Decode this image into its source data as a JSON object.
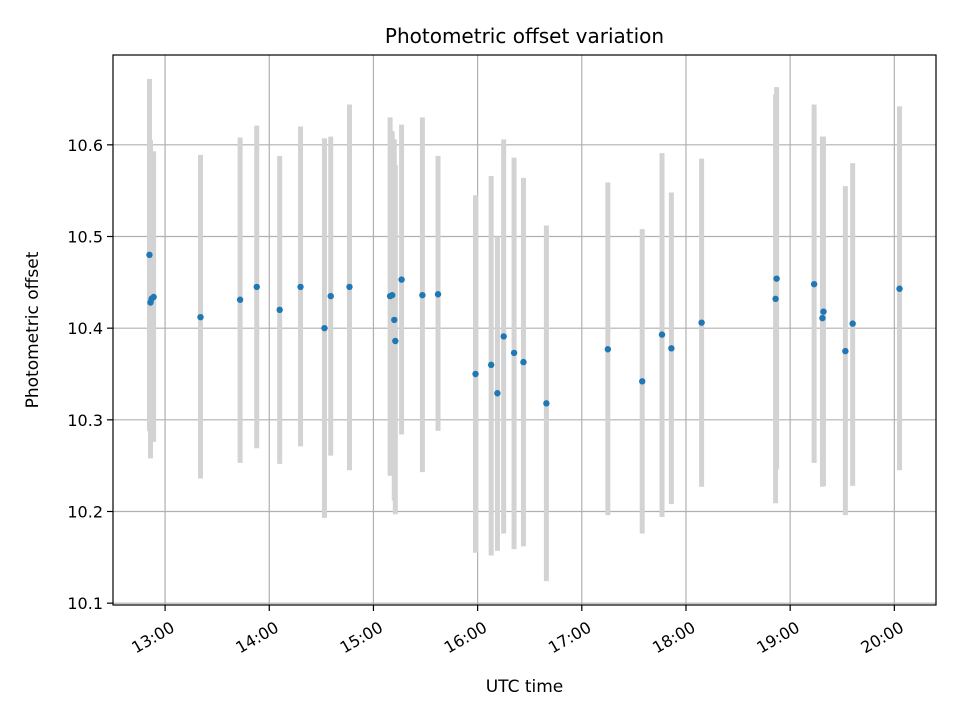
{
  "chart_data": {
    "type": "scatter",
    "title": "Photometric offset variation",
    "xlabel": "UTC time",
    "ylabel": "Photometric offset",
    "x_unit": "hours UTC",
    "xlim": [
      12.5,
      20.4
    ],
    "ylim": [
      10.098,
      10.698
    ],
    "grid": true,
    "x_tick_values": [
      13,
      14,
      15,
      16,
      17,
      18,
      19,
      20
    ],
    "x_tick_labels": [
      "13:00",
      "14:00",
      "15:00",
      "16:00",
      "17:00",
      "18:00",
      "19:00",
      "20:00"
    ],
    "y_tick_values": [
      10.1,
      10.2,
      10.3,
      10.4,
      10.5,
      10.6
    ],
    "y_tick_labels": [
      "10.1",
      "10.2",
      "10.3",
      "10.4",
      "10.5",
      "10.6"
    ],
    "point_color": "#1f77b4",
    "errorbar_color": "#d3d3d3",
    "points": [
      {
        "x": 12.85,
        "y": 10.48,
        "lo": 10.288,
        "hi": 10.672
      },
      {
        "x": 12.86,
        "y": 10.428,
        "lo": 10.258,
        "hi": 10.605
      },
      {
        "x": 12.87,
        "y": 10.432,
        "lo": 10.28,
        "hi": 10.58
      },
      {
        "x": 12.89,
        "y": 10.434,
        "lo": 10.276,
        "hi": 10.593
      },
      {
        "x": 13.34,
        "y": 10.412,
        "lo": 10.236,
        "hi": 10.589
      },
      {
        "x": 13.72,
        "y": 10.431,
        "lo": 10.253,
        "hi": 10.608
      },
      {
        "x": 13.88,
        "y": 10.445,
        "lo": 10.269,
        "hi": 10.621
      },
      {
        "x": 14.1,
        "y": 10.42,
        "lo": 10.252,
        "hi": 10.588
      },
      {
        "x": 14.3,
        "y": 10.445,
        "lo": 10.271,
        "hi": 10.62
      },
      {
        "x": 14.53,
        "y": 10.4,
        "lo": 10.193,
        "hi": 10.607
      },
      {
        "x": 14.59,
        "y": 10.435,
        "lo": 10.261,
        "hi": 10.609
      },
      {
        "x": 14.77,
        "y": 10.445,
        "lo": 10.245,
        "hi": 10.644
      },
      {
        "x": 15.16,
        "y": 10.435,
        "lo": 10.239,
        "hi": 10.63
      },
      {
        "x": 15.18,
        "y": 10.436,
        "lo": 10.24,
        "hi": 10.615
      },
      {
        "x": 15.2,
        "y": 10.409,
        "lo": 10.212,
        "hi": 10.606
      },
      {
        "x": 15.21,
        "y": 10.386,
        "lo": 10.197,
        "hi": 10.578
      },
      {
        "x": 15.27,
        "y": 10.453,
        "lo": 10.284,
        "hi": 10.622
      },
      {
        "x": 15.47,
        "y": 10.436,
        "lo": 10.243,
        "hi": 10.63
      },
      {
        "x": 15.62,
        "y": 10.437,
        "lo": 10.288,
        "hi": 10.588
      },
      {
        "x": 15.98,
        "y": 10.35,
        "lo": 10.155,
        "hi": 10.545
      },
      {
        "x": 16.13,
        "y": 10.36,
        "lo": 10.152,
        "hi": 10.566
      },
      {
        "x": 16.19,
        "y": 10.329,
        "lo": 10.157,
        "hi": 10.5
      },
      {
        "x": 16.25,
        "y": 10.391,
        "lo": 10.176,
        "hi": 10.606
      },
      {
        "x": 16.35,
        "y": 10.373,
        "lo": 10.159,
        "hi": 10.586
      },
      {
        "x": 16.44,
        "y": 10.363,
        "lo": 10.162,
        "hi": 10.564
      },
      {
        "x": 16.66,
        "y": 10.318,
        "lo": 10.124,
        "hi": 10.512
      },
      {
        "x": 17.25,
        "y": 10.377,
        "lo": 10.196,
        "hi": 10.559
      },
      {
        "x": 17.58,
        "y": 10.342,
        "lo": 10.176,
        "hi": 10.508
      },
      {
        "x": 17.77,
        "y": 10.393,
        "lo": 10.194,
        "hi": 10.591
      },
      {
        "x": 17.86,
        "y": 10.378,
        "lo": 10.208,
        "hi": 10.548
      },
      {
        "x": 18.15,
        "y": 10.406,
        "lo": 10.227,
        "hi": 10.585
      },
      {
        "x": 18.86,
        "y": 10.432,
        "lo": 10.209,
        "hi": 10.655
      },
      {
        "x": 18.87,
        "y": 10.454,
        "lo": 10.246,
        "hi": 10.663
      },
      {
        "x": 19.23,
        "y": 10.448,
        "lo": 10.253,
        "hi": 10.644
      },
      {
        "x": 19.31,
        "y": 10.411,
        "lo": 10.227,
        "hi": 10.609
      },
      {
        "x": 19.32,
        "y": 10.418,
        "lo": 10.228,
        "hi": 10.609
      },
      {
        "x": 19.53,
        "y": 10.375,
        "lo": 10.196,
        "hi": 10.555
      },
      {
        "x": 19.6,
        "y": 10.405,
        "lo": 10.228,
        "hi": 10.58
      },
      {
        "x": 20.05,
        "y": 10.443,
        "lo": 10.245,
        "hi": 10.642
      }
    ]
  }
}
